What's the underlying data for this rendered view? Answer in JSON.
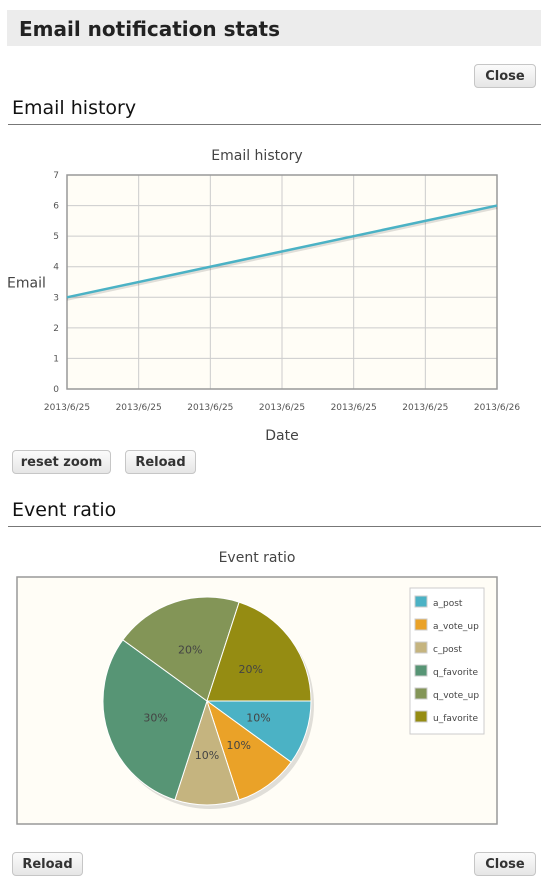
{
  "page": {
    "title": "Email notification stats"
  },
  "buttons": {
    "close_top": "Close",
    "reset_zoom": "reset zoom",
    "reload_history": "Reload",
    "reload_bottom": "Reload",
    "close_bottom": "Close"
  },
  "sections": {
    "history": "Email history",
    "ratio": "Event ratio"
  },
  "chart_data": [
    {
      "type": "line",
      "title": "Email history",
      "xlabel": "Date",
      "ylabel": "Email",
      "x_ticks": [
        "2013/6/25",
        "2013/6/25",
        "2013/6/25",
        "2013/6/25",
        "2013/6/25",
        "2013/6/25",
        "2013/6/26"
      ],
      "x": [
        0,
        1
      ],
      "y": [
        3,
        6
      ],
      "ylim": [
        0,
        7
      ],
      "y_ticks": [
        "0",
        "1",
        "2",
        "3",
        "4",
        "5",
        "6",
        "7"
      ],
      "line_color": "#4bb2c5",
      "background": "#fffdf6",
      "grid": true
    },
    {
      "type": "pie",
      "title": "Event ratio",
      "legend_position": "top-right",
      "background": "#fffdf6",
      "slices": [
        {
          "label": "a_post",
          "value": 10,
          "display": "10%",
          "color": "#4bb2c5"
        },
        {
          "label": "a_vote_up",
          "value": 10,
          "display": "10%",
          "color": "#eaa228"
        },
        {
          "label": "c_post",
          "value": 10,
          "display": "10%",
          "color": "#c5b47f"
        },
        {
          "label": "q_favorite",
          "value": 30,
          "display": "30%",
          "color": "#579575"
        },
        {
          "label": "q_vote_up",
          "value": 20,
          "display": "20%",
          "color": "#839557"
        },
        {
          "label": "u_favorite",
          "value": 20,
          "display": "20%",
          "color": "#958c12"
        }
      ]
    }
  ]
}
